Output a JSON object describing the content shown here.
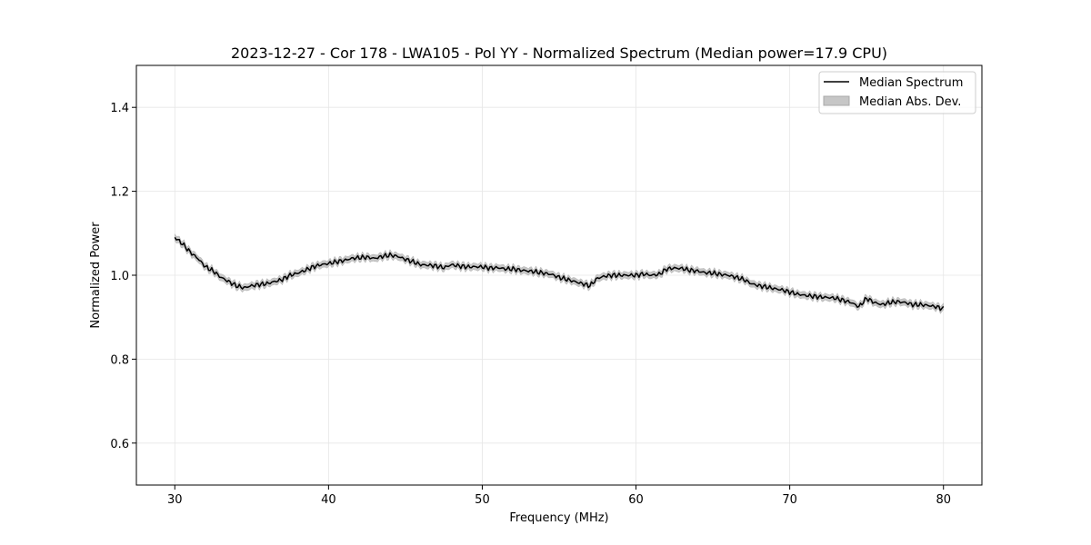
{
  "chart_data": {
    "type": "line",
    "title": "2023-12-27 - Cor 178 - LWA105 - Pol YY - Normalized Spectrum (Median power=17.9 CPU)",
    "xlabel": "Frequency (MHz)",
    "ylabel": "Normalized Power",
    "xlim": [
      27.5,
      82.5
    ],
    "ylim": [
      0.5,
      1.5
    ],
    "xticks": [
      30,
      40,
      50,
      60,
      70,
      80
    ],
    "yticks": [
      0.6,
      0.8,
      1.0,
      1.2,
      1.4
    ],
    "xtick_labels": [
      "30",
      "40",
      "50",
      "60",
      "70",
      "80"
    ],
    "ytick_labels": [
      "0.6",
      "0.8",
      "1.0",
      "1.2",
      "1.4"
    ],
    "grid": true,
    "legend_position": "top-right",
    "colors": {
      "line": "#000000",
      "band": "#c6c6c6",
      "grid": "#e6e6e6"
    },
    "legend": [
      {
        "label": "Median Spectrum",
        "kind": "line"
      },
      {
        "label": "Median Abs. Dev.",
        "kind": "band"
      }
    ],
    "series": [
      {
        "name": "Median Spectrum",
        "x": [
          30,
          30.5,
          31,
          31.5,
          32,
          32.5,
          33,
          33.5,
          34,
          34.5,
          35,
          35.5,
          36,
          36.5,
          37,
          37.5,
          38,
          38.5,
          39,
          39.5,
          40,
          40.5,
          41,
          41.5,
          42,
          42.5,
          43,
          43.5,
          44,
          44.5,
          45,
          45.5,
          46,
          46.5,
          47,
          47.5,
          48,
          48.5,
          49,
          49.5,
          50,
          50.5,
          51,
          51.5,
          52,
          52.5,
          53,
          53.5,
          54,
          54.5,
          55,
          55.5,
          56,
          56.5,
          57,
          57.5,
          58,
          58.5,
          59,
          59.5,
          60,
          60.5,
          61,
          61.5,
          62,
          62.5,
          63,
          63.5,
          64,
          64.5,
          65,
          65.5,
          66,
          66.5,
          67,
          67.5,
          68,
          68.5,
          69,
          69.5,
          70,
          70.5,
          71,
          71.5,
          72,
          72.5,
          73,
          73.5,
          74,
          74.5,
          75,
          75.5,
          76,
          76.5,
          77,
          77.5,
          78,
          78.5,
          79,
          79.5,
          80
        ],
        "y": [
          1.09,
          1.075,
          1.055,
          1.04,
          1.02,
          1.01,
          0.995,
          0.985,
          0.975,
          0.97,
          0.975,
          0.978,
          0.98,
          0.985,
          0.99,
          1.0,
          1.005,
          1.012,
          1.02,
          1.025,
          1.028,
          1.032,
          1.035,
          1.04,
          1.042,
          1.043,
          1.04,
          1.045,
          1.048,
          1.045,
          1.038,
          1.032,
          1.025,
          1.024,
          1.022,
          1.018,
          1.025,
          1.022,
          1.02,
          1.02,
          1.02,
          1.017,
          1.018,
          1.015,
          1.015,
          1.012,
          1.01,
          1.008,
          1.005,
          1.002,
          0.995,
          0.99,
          0.985,
          0.98,
          0.975,
          0.993,
          0.998,
          1.0,
          1.0,
          1.0,
          1.0,
          1.003,
          1.0,
          1.002,
          1.015,
          1.017,
          1.016,
          1.012,
          1.01,
          1.006,
          1.005,
          1.002,
          1.0,
          0.995,
          0.99,
          0.98,
          0.975,
          0.972,
          0.968,
          0.965,
          0.96,
          0.955,
          0.952,
          0.95,
          0.948,
          0.947,
          0.945,
          0.94,
          0.935,
          0.925,
          0.945,
          0.935,
          0.93,
          0.935,
          0.937,
          0.935,
          0.93,
          0.93,
          0.928,
          0.925,
          0.92
        ]
      },
      {
        "name": "Median Abs. Dev.",
        "half_width": 0.008
      }
    ]
  }
}
